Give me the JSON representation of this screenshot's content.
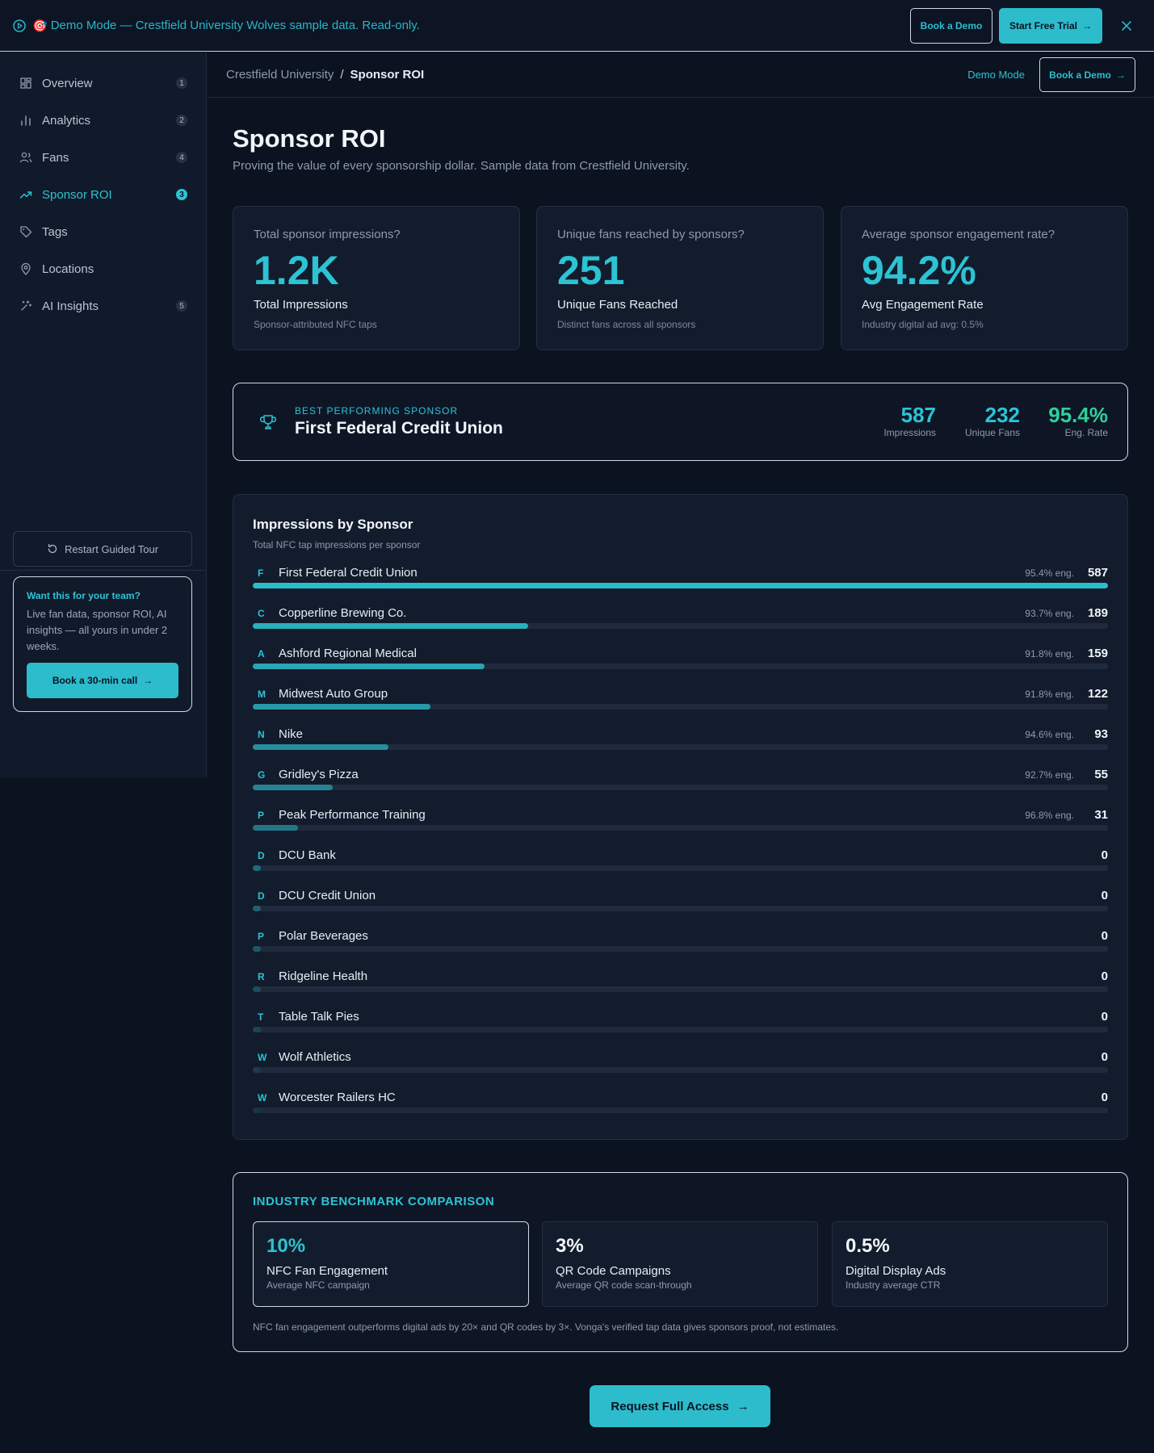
{
  "banner": {
    "emoji": "🎯",
    "text": "Demo Mode — Crestfield University Wolves sample data. Read-only.",
    "book_demo": "Book a Demo",
    "start_trial": "Start Free Trial"
  },
  "sidebar": {
    "items": [
      {
        "label": "Overview",
        "badge": "1",
        "icon": "grid-icon"
      },
      {
        "label": "Analytics",
        "badge": "2",
        "icon": "bar-chart-icon"
      },
      {
        "label": "Fans",
        "badge": "4",
        "icon": "users-icon"
      },
      {
        "label": "Sponsor ROI",
        "badge": "3",
        "icon": "trending-up-icon",
        "active": true
      },
      {
        "label": "Tags",
        "badge": "",
        "icon": "tag-icon"
      },
      {
        "label": "Locations",
        "badge": "",
        "icon": "map-pin-icon"
      },
      {
        "label": "AI Insights",
        "badge": "5",
        "icon": "sparkles-icon"
      }
    ],
    "restart_tour": "Restart Guided Tour",
    "promo": {
      "title": "Want this for your team?",
      "body": "Live fan data, sponsor ROI, AI insights — all yours in under 2 weeks.",
      "cta": "Book a 30-min call"
    }
  },
  "topbar": {
    "breadcrumb_root": "Crestfield University",
    "breadcrumb_sep": "/",
    "breadcrumb_current": "Sponsor ROI",
    "demo_mode": "Demo Mode",
    "book_demo": "Book a Demo"
  },
  "page": {
    "title": "Sponsor ROI",
    "subtitle": "Proving the value of every sponsorship dollar. Sample data from Crestfield University."
  },
  "kpis": [
    {
      "question": "Total sponsor impressions?",
      "value": "1.2K",
      "label": "Total Impressions",
      "sub": "Sponsor-attributed NFC taps"
    },
    {
      "question": "Unique fans reached by sponsors?",
      "value": "251",
      "label": "Unique Fans Reached",
      "sub": "Distinct fans across all sponsors"
    },
    {
      "question": "Average sponsor engagement rate?",
      "value": "94.2%",
      "label": "Avg Engagement Rate",
      "sub": "Industry digital ad avg: 0.5%"
    }
  ],
  "best": {
    "kicker": "BEST PERFORMING SPONSOR",
    "name": "First Federal Credit Union",
    "impressions": "587",
    "impressions_label": "Impressions",
    "fans": "232",
    "fans_label": "Unique Fans",
    "rate": "95.4%",
    "rate_label": "Eng. Rate"
  },
  "impressions": {
    "title": "Impressions by Sponsor",
    "subtitle": "Total NFC tap impressions per sponsor",
    "max": 587,
    "rows": [
      {
        "letter": "F",
        "name": "First Federal Credit Union",
        "eng": "95.4% eng.",
        "value": 587,
        "color": "#2cbccc"
      },
      {
        "letter": "C",
        "name": "Copperline Brewing Co.",
        "eng": "93.7% eng.",
        "value": 189,
        "color": "#2ab0bf"
      },
      {
        "letter": "A",
        "name": "Ashford Regional Medical",
        "eng": "91.8% eng.",
        "value": 159,
        "color": "#29a6b6"
      },
      {
        "letter": "M",
        "name": "Midwest Auto Group",
        "eng": "91.8% eng.",
        "value": 122,
        "color": "#279aaa"
      },
      {
        "letter": "N",
        "name": "Nike",
        "eng": "94.6% eng.",
        "value": 93,
        "color": "#258f9f"
      },
      {
        "letter": "G",
        "name": "Gridley's Pizza",
        "eng": "92.7% eng.",
        "value": 55,
        "color": "#238393"
      },
      {
        "letter": "P",
        "name": "Peak Performance Training",
        "eng": "96.8% eng.",
        "value": 31,
        "color": "#217787"
      },
      {
        "letter": "D",
        "name": "DCU Bank",
        "eng": "",
        "value": 0,
        "color": "#1f6b7b"
      },
      {
        "letter": "D",
        "name": "DCU Credit Union",
        "eng": "",
        "value": 0,
        "color": "#1e6270"
      },
      {
        "letter": "P",
        "name": "Polar Beverages",
        "eng": "",
        "value": 0,
        "color": "#1c5866"
      },
      {
        "letter": "R",
        "name": "Ridgeline Health",
        "eng": "",
        "value": 0,
        "color": "#1b4f5c"
      },
      {
        "letter": "T",
        "name": "Table Talk Pies",
        "eng": "",
        "value": 0,
        "color": "#1a4653"
      },
      {
        "letter": "W",
        "name": "Wolf Athletics",
        "eng": "",
        "value": 0,
        "color": "#193e4a"
      },
      {
        "letter": "W",
        "name": "Worcester Railers HC",
        "eng": "",
        "value": 0,
        "color": "#183642"
      }
    ]
  },
  "benchmark": {
    "title": "INDUSTRY BENCHMARK COMPARISON",
    "cards": [
      {
        "value": "10%",
        "label": "NFC Fan Engagement",
        "sub": "Average NFC campaign"
      },
      {
        "value": "3%",
        "label": "QR Code Campaigns",
        "sub": "Average QR code scan-through"
      },
      {
        "value": "0.5%",
        "label": "Digital Display Ads",
        "sub": "Industry average CTR"
      }
    ],
    "note": "NFC fan engagement outperforms digital ads by 20× and QR codes by 3×. Vonga's verified tap data gives sponsors proof, not estimates."
  },
  "cta": {
    "request": "Request Full Access"
  }
}
